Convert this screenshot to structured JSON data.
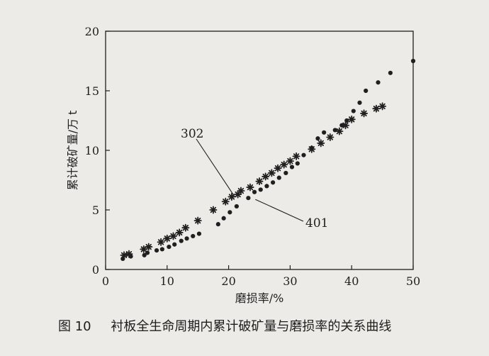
{
  "figure": {
    "caption_number": "图 10",
    "caption_text": "衬板全生命周期内累计破矿量与磨损率的关系曲线"
  },
  "colors": {
    "ink": "#1f1f1f",
    "background": "#ecebe8"
  },
  "chart_data": {
    "type": "scatter",
    "title": "",
    "xlabel": "磨损率/%",
    "ylabel": "累计破矿量/万 t",
    "xlim": [
      0,
      50
    ],
    "ylim": [
      0,
      20
    ],
    "xticks": [
      0,
      10,
      20,
      30,
      40,
      50
    ],
    "yticks": [
      0,
      5,
      10,
      15,
      20
    ],
    "grid": false,
    "series": [
      {
        "name": "302",
        "marker": "asterisk",
        "x": [
          3,
          3.8,
          6.2,
          7,
          9,
          10,
          11,
          12,
          13,
          15,
          17.5,
          19.5,
          20.5,
          21.5,
          22,
          23.5,
          25,
          26,
          27,
          28,
          29,
          30,
          31,
          33.5,
          35,
          36.5,
          38,
          39,
          40,
          42,
          44,
          45
        ],
        "y": [
          1.2,
          1.3,
          1.7,
          1.9,
          2.3,
          2.6,
          2.8,
          3.1,
          3.5,
          4.1,
          5.0,
          5.7,
          6.1,
          6.3,
          6.6,
          6.9,
          7.4,
          7.8,
          8.1,
          8.5,
          8.8,
          9.1,
          9.5,
          10.1,
          10.6,
          11.1,
          11.6,
          12.1,
          12.6,
          13.1,
          13.5,
          13.7
        ]
      },
      {
        "name": "401",
        "marker": "dot",
        "x": [
          2.8,
          4.1,
          6.3,
          6.8,
          8.3,
          9.2,
          10.3,
          11.2,
          12.3,
          13.2,
          14.2,
          15.2,
          18.3,
          19.2,
          20.2,
          21.3,
          23.2,
          24.2,
          25.2,
          26.2,
          27.2,
          28.2,
          29.3,
          30.3,
          31.2,
          32.2,
          33.5,
          34.5,
          35.5,
          37.3,
          38.4,
          39.2,
          40.3,
          41.3,
          42.3,
          44.3,
          46.3,
          50
        ],
        "y": [
          0.9,
          1.1,
          1.2,
          1.4,
          1.6,
          1.7,
          1.9,
          2.1,
          2.4,
          2.6,
          2.8,
          3.0,
          3.8,
          4.3,
          4.8,
          5.3,
          6.0,
          6.5,
          6.7,
          7.0,
          7.3,
          7.7,
          8.1,
          8.6,
          8.9,
          9.6,
          10.2,
          11.0,
          11.5,
          11.7,
          12.1,
          12.5,
          13.3,
          14.0,
          15.0,
          15.7,
          16.5,
          17.5
        ]
      }
    ],
    "annotations": [
      {
        "text": "302",
        "target_x": 21,
        "target_y": 6.1
      },
      {
        "text": "401",
        "target_x": 24,
        "target_y": 6.0
      }
    ]
  }
}
